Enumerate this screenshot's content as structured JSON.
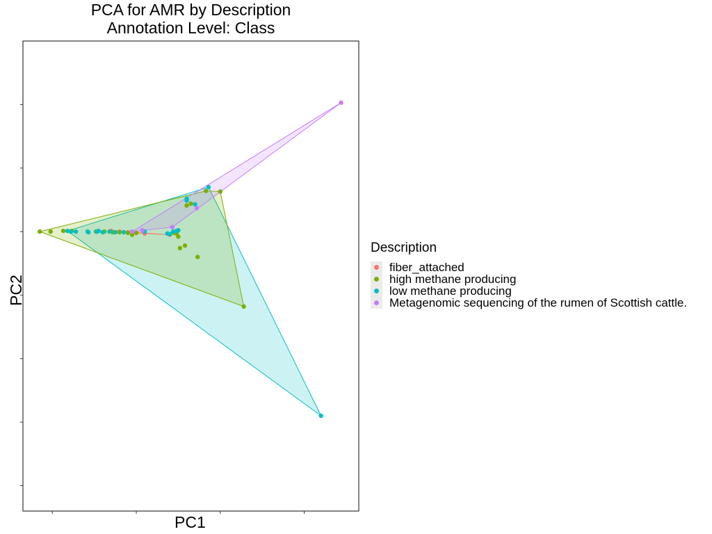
{
  "chart_data": {
    "type": "scatter",
    "title_line1": "PCA for AMR by Description",
    "title_line2": "Annotation Level: Class",
    "xlabel": "PC1",
    "ylabel": "PC2",
    "xlim": [
      -1.35,
      2.65
    ],
    "ylim": [
      -4.4,
      3.0
    ],
    "x_ticks": [
      -1,
      0,
      1,
      2
    ],
    "y_ticks": [
      -4,
      -3,
      -2,
      -1,
      0,
      1,
      2
    ],
    "show_tick_labels": false,
    "grid": false,
    "hull_polygons": true,
    "legend": {
      "title": "Description",
      "position": "right"
    },
    "series": [
      {
        "name": "fiber_attached",
        "color": "#F8766D",
        "points": [
          [
            -0.3,
            0.01
          ],
          [
            -0.2,
            0.0
          ],
          [
            -0.1,
            -0.01
          ],
          [
            0.0,
            -0.02
          ],
          [
            0.1,
            -0.03
          ],
          [
            0.4,
            -0.05
          ]
        ]
      },
      {
        "name": "high methane producing",
        "color": "#7CAE00",
        "points": [
          [
            -1.15,
            0.0
          ],
          [
            -1.02,
            0.0
          ],
          [
            -0.87,
            0.01
          ],
          [
            -0.77,
            0.01
          ],
          [
            -0.48,
            0.0
          ],
          [
            -0.38,
            0.0
          ],
          [
            -0.28,
            -0.01
          ],
          [
            -0.2,
            -0.01
          ],
          [
            -0.1,
            -0.02
          ],
          [
            -0.05,
            -0.05
          ],
          [
            0.0,
            -0.02
          ],
          [
            0.45,
            -0.02
          ],
          [
            0.48,
            -0.03
          ],
          [
            0.5,
            -0.08
          ],
          [
            0.52,
            -0.26
          ],
          [
            0.58,
            -0.22
          ],
          [
            0.73,
            -0.4
          ],
          [
            0.6,
            0.41
          ],
          [
            0.65,
            0.44
          ],
          [
            0.83,
            0.64
          ],
          [
            1.0,
            0.63
          ],
          [
            1.28,
            -1.18
          ]
        ]
      },
      {
        "name": "low methane producing",
        "color": "#00BFC4",
        "points": [
          [
            -0.82,
            0.01
          ],
          [
            -0.78,
            0.0
          ],
          [
            -0.72,
            0.0
          ],
          [
            -0.58,
            0.0
          ],
          [
            -0.57,
            -0.01
          ],
          [
            -0.47,
            0.0
          ],
          [
            -0.45,
            0.01
          ],
          [
            -0.4,
            -0.01
          ],
          [
            -0.32,
            0.0
          ],
          [
            -0.25,
            -0.01
          ],
          [
            -0.15,
            -0.01
          ],
          [
            0.1,
            0.0
          ],
          [
            0.37,
            -0.03
          ],
          [
            0.4,
            -0.04
          ],
          [
            0.44,
            0.0
          ],
          [
            0.48,
            0.01
          ],
          [
            0.5,
            0.02
          ],
          [
            0.6,
            0.52
          ],
          [
            0.6,
            0.49
          ],
          [
            0.7,
            0.43
          ],
          [
            0.86,
            0.7
          ],
          [
            2.2,
            -2.9
          ]
        ]
      },
      {
        "name": "Metagenomic sequencing of the rumen of Scottish cattle.",
        "color": "#C77CFF",
        "points": [
          [
            -0.05,
            0.0
          ],
          [
            0.07,
            0.02
          ],
          [
            0.43,
            0.07
          ],
          [
            0.72,
            0.37
          ],
          [
            2.44,
            2.03
          ]
        ]
      }
    ]
  }
}
